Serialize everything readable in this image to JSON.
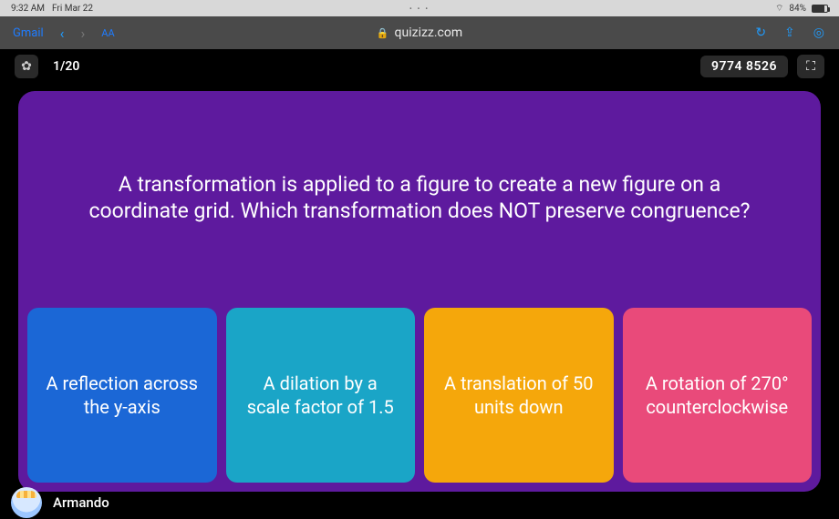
{
  "statusbar": {
    "time": "9:32 AM",
    "date": "Fri Mar 22",
    "battery_pct": "84%",
    "battery_fill_pct": 84
  },
  "toolbar": {
    "left_link": "Gmail",
    "back_glyph": "‹",
    "fwd_glyph": "›",
    "aa": "AA",
    "lock_glyph": "🔒",
    "url": "quizizz.com",
    "reload_glyph": "↻",
    "share_glyph": "⇪",
    "tabs_glyph": "◎"
  },
  "quizbar": {
    "gear_glyph": "✿",
    "progress": "1/20",
    "code": "9774 8526",
    "fullscreen_glyph": "⛶"
  },
  "quiz": {
    "card_bg": "#5e1a9e",
    "question": "A transformation is applied to a figure to create a new figure on a coordinate grid. Which transformation does NOT preserve congruence?",
    "question_fontsize": 23,
    "answers": [
      {
        "text": "A reflection across the y-axis",
        "bg": "#1b67d6"
      },
      {
        "text": "A dilation by a scale factor of 1.5",
        "bg": "#1aa5c7"
      },
      {
        "text": "A translation of 50 units down",
        "bg": "#f5a70b"
      },
      {
        "text": "A rotation of 270° counterclockwise",
        "bg": "#e94a7a"
      }
    ]
  },
  "player": {
    "name": "Armando"
  }
}
